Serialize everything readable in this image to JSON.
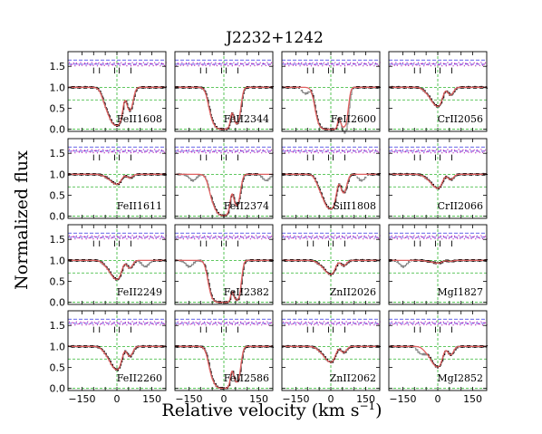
{
  "chart_data": {
    "type": "line",
    "title": "J2232+1242",
    "xlabel": "Relative velocity (km s",
    "xlabel_sup": "−1",
    "xlabel_close": ")",
    "ylabel": "Normalized flux",
    "xlim": [
      -210,
      210
    ],
    "ylim": [
      -0.05,
      1.85
    ],
    "xticks": [
      -150,
      -100,
      -50,
      0,
      50,
      100,
      150
    ],
    "xtick_labels": [
      "−150",
      "",
      "",
      "0",
      "",
      "",
      "150"
    ],
    "yticks": [
      0.0,
      0.5,
      1.0,
      1.5
    ],
    "ytick_labels": [
      "0.0",
      "0.5",
      "1.0",
      "1.5"
    ],
    "grid": "dashed green reference lines at flux 0.0, 0.7, 1.0 and velocity 0",
    "component_velocities": [
      -100,
      -75,
      -10,
      10,
      60
    ],
    "reference_lines": {
      "continuum": 1.0,
      "residual_center": 1.55,
      "residual_upper": 1.65,
      "lower": 0.7
    },
    "colors": {
      "data": "#000000",
      "model": "#e06060",
      "masked": "#888888",
      "guide": "#2db52d",
      "residual_band": "#3030e0",
      "residual_points": "#c030c0"
    },
    "panels": [
      {
        "row": 0,
        "col": 0,
        "ion": "FeII1608",
        "tau": 1.8,
        "masked": []
      },
      {
        "row": 0,
        "col": 1,
        "ion": "FeII2344",
        "tau": 4.5,
        "masked": []
      },
      {
        "row": 0,
        "col": 2,
        "ion": "FeII2600",
        "tau": 6.5,
        "masked": [
          [
            -130,
            -90
          ],
          [
            40,
            90
          ]
        ]
      },
      {
        "row": 0,
        "col": 3,
        "ion": "CrII2056",
        "tau": 0.45,
        "masked": []
      },
      {
        "row": 1,
        "col": 0,
        "ion": "FeII1611",
        "tau": 0.2,
        "masked": []
      },
      {
        "row": 1,
        "col": 1,
        "ion": "FeII2374",
        "tau": 3.0,
        "masked": [
          [
            -210,
            -60
          ],
          [
            150,
            210
          ]
        ]
      },
      {
        "row": 1,
        "col": 2,
        "ion": "SiII1808",
        "tau": 1.3,
        "masked": [
          [
            110,
            150
          ]
        ]
      },
      {
        "row": 1,
        "col": 3,
        "ion": "CrII2066",
        "tau": 0.3,
        "masked": []
      },
      {
        "row": 2,
        "col": 0,
        "ion": "FeII2249",
        "tau": 0.45,
        "masked": [
          [
            90,
            150
          ]
        ]
      },
      {
        "row": 2,
        "col": 1,
        "ion": "FeII2382",
        "tau": 6.5,
        "masked": [
          [
            -210,
            -90
          ]
        ]
      },
      {
        "row": 2,
        "col": 2,
        "ion": "ZnII2026",
        "tau": 0.3,
        "masked": []
      },
      {
        "row": 2,
        "col": 3,
        "ion": "MgI1827",
        "tau": 0.05,
        "masked": [
          [
            -180,
            -120
          ]
        ]
      },
      {
        "row": 3,
        "col": 0,
        "ion": "FeII2260",
        "tau": 0.6,
        "masked": []
      },
      {
        "row": 3,
        "col": 1,
        "ion": "FeII2586",
        "tau": 4.2,
        "masked": []
      },
      {
        "row": 3,
        "col": 2,
        "ion": "ZnII2062",
        "tau": 0.35,
        "masked": []
      },
      {
        "row": 3,
        "col": 3,
        "ion": "MgI2852",
        "tau": 0.5,
        "masked": [
          [
            -100,
            -50
          ]
        ]
      }
    ]
  }
}
